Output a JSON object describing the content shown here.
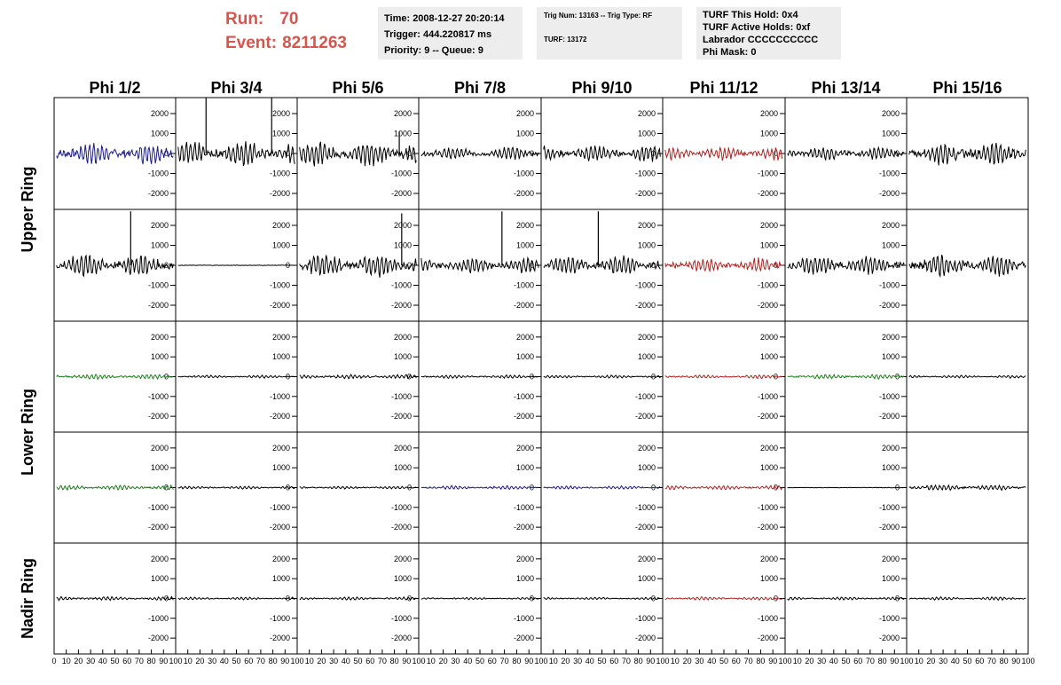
{
  "header": {
    "run_label": "Run:",
    "run_value": "70",
    "event_label": "Event:",
    "event_value": "8211263",
    "time_box": [
      "Time: 2008-12-27 20:20:14",
      "Trigger: 444.220817 ms",
      "Priority: 9 -- Queue: 9"
    ],
    "trig_box": [
      "Trig Num: 13163 -- Trig Type: RF",
      "TURF: 13172"
    ],
    "turf_box": [
      "TURF This Hold: 0x4",
      "TURF Active Holds: 0xf",
      "Labrador CCCCCCCCCC",
      "Phi Mask: 0"
    ]
  },
  "chart_data": {
    "type": "line",
    "columns": [
      "Phi 1/2",
      "Phi 3/4",
      "Phi 5/6",
      "Phi 7/8",
      "Phi 9/10",
      "Phi 11/12",
      "Phi 13/14",
      "Phi 15/16"
    ],
    "ring_labels": [
      "Upper Ring",
      "Lower Ring",
      "Nadir Ring"
    ],
    "xlim": [
      0,
      100
    ],
    "ylim": [
      -2800,
      2800
    ],
    "x_tick_labels": [
      "0",
      "10",
      "20",
      "30",
      "40",
      "50",
      "60",
      "70",
      "80",
      "90",
      "100"
    ],
    "y_tick_labels": [
      "2000",
      "1000",
      "0",
      "-1000",
      "-2000"
    ],
    "colors": {
      "normal": "#000000",
      "blue": "#1c1c8c",
      "red": "#b22222",
      "green": "#1e7d1e"
    },
    "panels": [
      [
        "blue",
        "black",
        "black",
        "black",
        "black",
        "red",
        "black",
        "black"
      ],
      [
        "black",
        "black",
        "black",
        "black",
        "black",
        "red",
        "black",
        "black"
      ],
      [
        "green",
        "black",
        "black",
        "black",
        "black",
        "red",
        "green",
        "black"
      ],
      [
        "green",
        "black",
        "black",
        "blue",
        "blue",
        "red",
        "black",
        "black"
      ],
      [
        "black",
        "black",
        "black",
        "black",
        "black",
        "red",
        "black",
        "black"
      ]
    ],
    "amplitudes": [
      [
        450,
        500,
        520,
        280,
        330,
        280,
        280,
        470
      ],
      [
        480,
        0,
        480,
        320,
        380,
        300,
        380,
        460
      ],
      [
        110,
        60,
        90,
        70,
        60,
        70,
        100,
        60
      ],
      [
        100,
        60,
        60,
        80,
        70,
        90,
        0,
        120
      ],
      [
        80,
        55,
        60,
        45,
        50,
        70,
        60,
        70
      ]
    ],
    "spikes": [
      {
        "row": 0,
        "col": 1,
        "x": 25,
        "y": 2800
      },
      {
        "row": 0,
        "col": 1,
        "x": 79,
        "y": 2800
      },
      {
        "row": 0,
        "col": 2,
        "x": 84,
        "y": 1100
      },
      {
        "row": 1,
        "col": 0,
        "x": 63,
        "y": 2700
      },
      {
        "row": 1,
        "col": 2,
        "x": 86,
        "y": 2600
      },
      {
        "row": 1,
        "col": 3,
        "x": 68,
        "y": 2700
      },
      {
        "row": 1,
        "col": 4,
        "x": 47,
        "y": 2700
      }
    ]
  }
}
